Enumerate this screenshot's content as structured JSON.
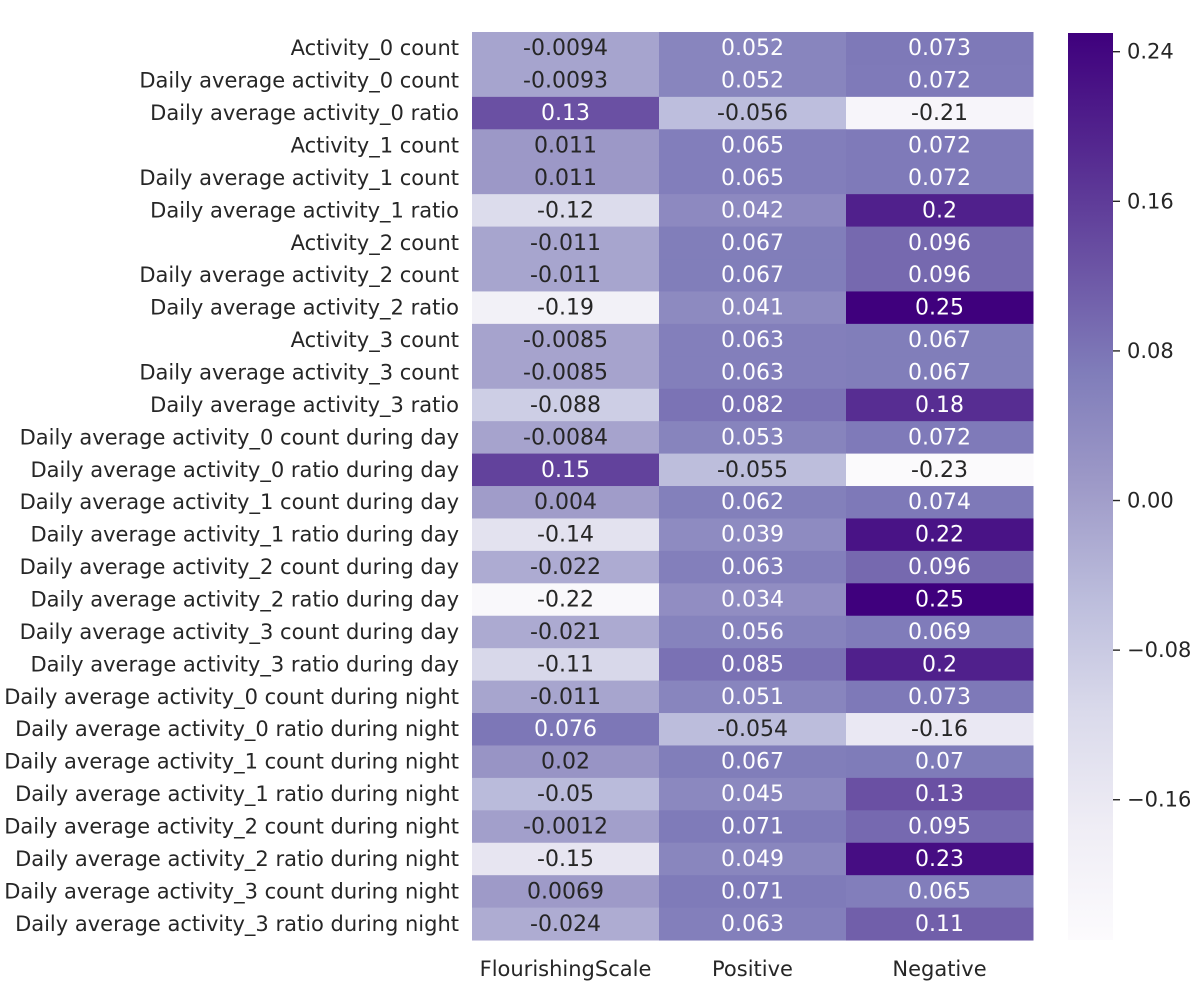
{
  "chart_data": {
    "type": "heatmap",
    "title": "",
    "xlabel": "",
    "ylabel": "",
    "columns": [
      "FlourishingScale",
      "Positive",
      "Negative"
    ],
    "rows": [
      "Activity_0 count",
      "Daily average activity_0 count",
      "Daily average activity_0 ratio",
      "Activity_1 count",
      "Daily average activity_1 count",
      "Daily average activity_1 ratio",
      "Activity_2 count",
      "Daily average activity_2 count",
      "Daily average activity_2 ratio",
      "Activity_3 count",
      "Daily average activity_3 count",
      "Daily average activity_3 ratio",
      "Daily average activity_0 count during day",
      "Daily average activity_0 ratio during day",
      "Daily average activity_1 count during day",
      "Daily average activity_1 ratio during day",
      "Daily average activity_2 count during day",
      "Daily average activity_2 ratio during day",
      "Daily average activity_3 count during day",
      "Daily average activity_3 ratio during day",
      "Daily average activity_0 count during night",
      "Daily average activity_0 ratio during night",
      "Daily average activity_1 count during night",
      "Daily average activity_1 ratio during night",
      "Daily average activity_2 count during night",
      "Daily average activity_2 ratio during night",
      "Daily average activity_3 count during night",
      "Daily average activity_3 ratio during night"
    ],
    "values": [
      [
        "-0.0094",
        "0.052",
        "0.073"
      ],
      [
        "-0.0093",
        "0.052",
        "0.072"
      ],
      [
        "0.13",
        "-0.056",
        "-0.21"
      ],
      [
        "0.011",
        "0.065",
        "0.072"
      ],
      [
        "0.011",
        "0.065",
        "0.072"
      ],
      [
        "-0.12",
        "0.042",
        "0.2"
      ],
      [
        "-0.011",
        "0.067",
        "0.096"
      ],
      [
        "-0.011",
        "0.067",
        "0.096"
      ],
      [
        "-0.19",
        "0.041",
        "0.25"
      ],
      [
        "-0.0085",
        "0.063",
        "0.067"
      ],
      [
        "-0.0085",
        "0.063",
        "0.067"
      ],
      [
        "-0.088",
        "0.082",
        "0.18"
      ],
      [
        "-0.0084",
        "0.053",
        "0.072"
      ],
      [
        "0.15",
        "-0.055",
        "-0.23"
      ],
      [
        "0.004",
        "0.062",
        "0.074"
      ],
      [
        "-0.14",
        "0.039",
        "0.22"
      ],
      [
        "-0.022",
        "0.063",
        "0.096"
      ],
      [
        "-0.22",
        "0.034",
        "0.25"
      ],
      [
        "-0.021",
        "0.056",
        "0.069"
      ],
      [
        "-0.11",
        "0.085",
        "0.2"
      ],
      [
        "-0.011",
        "0.051",
        "0.073"
      ],
      [
        "0.076",
        "-0.054",
        "-0.16"
      ],
      [
        "0.02",
        "0.067",
        "0.07"
      ],
      [
        "-0.05",
        "0.045",
        "0.13"
      ],
      [
        "-0.0012",
        "0.071",
        "0.095"
      ],
      [
        "-0.15",
        "0.049",
        "0.23"
      ],
      [
        "0.0069",
        "0.071",
        "0.065"
      ],
      [
        "-0.024",
        "0.063",
        "0.11"
      ]
    ],
    "colorbar": {
      "range": [
        -0.235,
        0.25
      ],
      "ticks": [
        "0.24",
        "0.16",
        "0.08",
        "0.00",
        "−0.08",
        "−0.16"
      ],
      "cmap": "Purples",
      "colors": [
        "#fcfbfd",
        "#efedf5",
        "#dadaeb",
        "#bcbddc",
        "#9e9ac8",
        "#807dba",
        "#6a51a3",
        "#54278f",
        "#3f007d"
      ]
    },
    "grid": false,
    "legend": "colorbar-right"
  }
}
